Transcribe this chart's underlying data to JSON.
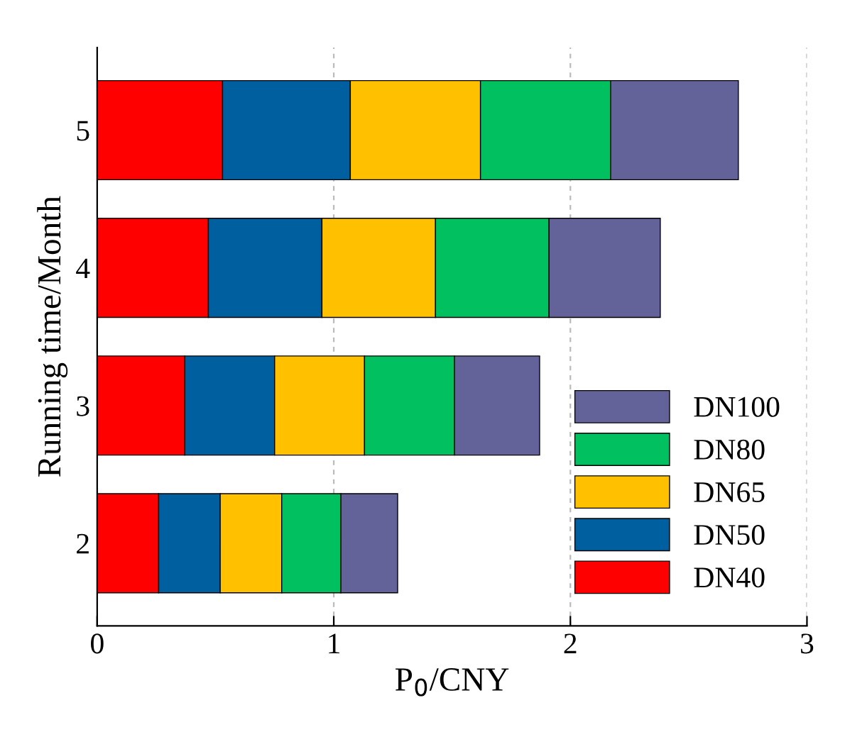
{
  "chart_data": {
    "type": "bar",
    "orientation": "horizontal",
    "stacked": true,
    "xlabel": "P$_{0}$/CNY",
    "ylabel": "Running time/Month",
    "categories": [
      "5",
      "4",
      "3",
      "2"
    ],
    "series": [
      {
        "name": "DN40",
        "color": "#ff0000",
        "values": [
          0.53,
          0.47,
          0.37,
          0.26
        ]
      },
      {
        "name": "DN50",
        "color": "#00609f",
        "values": [
          0.54,
          0.48,
          0.38,
          0.26
        ]
      },
      {
        "name": "DN65",
        "color": "#ffc000",
        "values": [
          0.55,
          0.48,
          0.38,
          0.26
        ]
      },
      {
        "name": "DN80",
        "color": "#00c060",
        "values": [
          0.55,
          0.48,
          0.38,
          0.25
        ]
      },
      {
        "name": "DN100",
        "color": "#636399",
        "values": [
          0.54,
          0.47,
          0.36,
          0.24
        ]
      }
    ],
    "xlim": [
      0,
      3
    ],
    "xticks": [
      0,
      1,
      2,
      3
    ],
    "grid": "x",
    "legend": "bottom right"
  }
}
